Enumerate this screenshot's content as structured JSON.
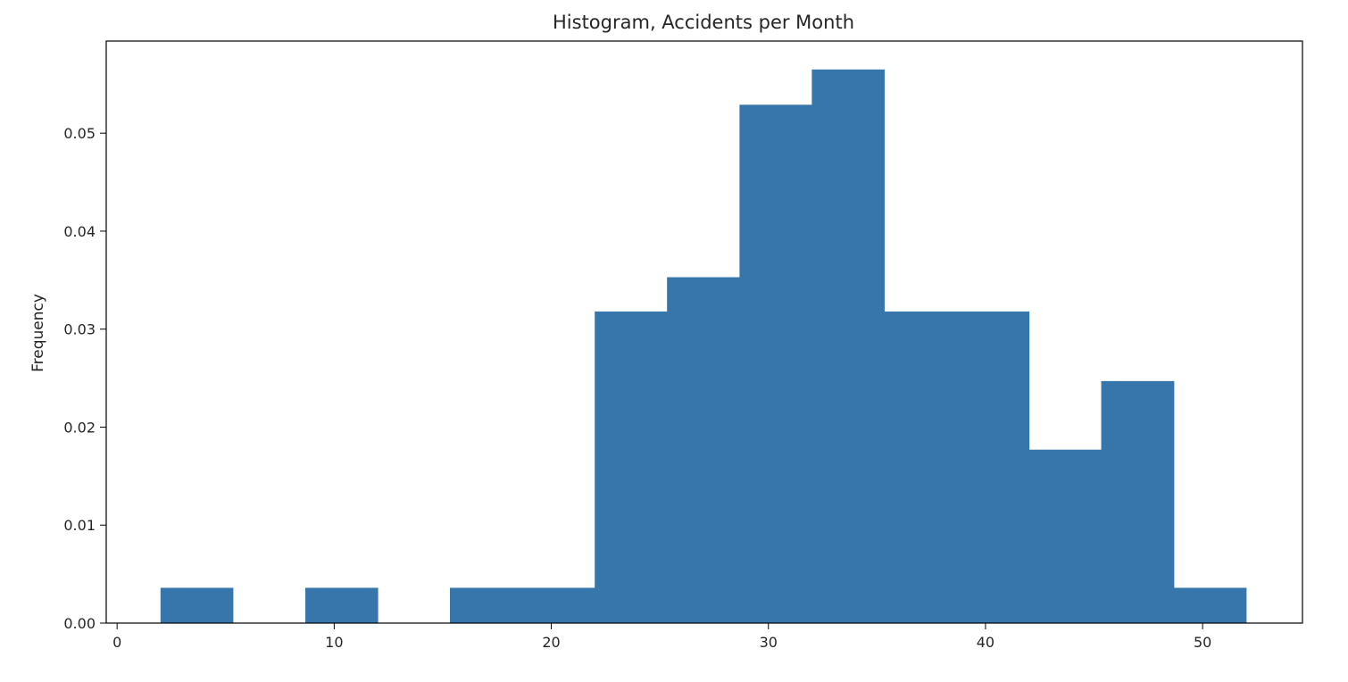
{
  "chart_data": {
    "type": "bar",
    "subtype": "histogram",
    "title": "Histogram, Accidents per Month",
    "xlabel": "",
    "ylabel": "Frequency",
    "xlim": [
      -0.5,
      54.6
    ],
    "ylim": [
      0,
      0.0594
    ],
    "xticks": [
      0,
      10,
      20,
      30,
      40,
      50
    ],
    "xtick_labels": [
      "0",
      "10",
      "20",
      "30",
      "40",
      "50"
    ],
    "yticks": [
      0.0,
      0.01,
      0.02,
      0.03,
      0.04,
      0.05
    ],
    "ytick_labels": [
      "0.00",
      "0.01",
      "0.02",
      "0.03",
      "0.04",
      "0.05"
    ],
    "grid": false,
    "legend": "none",
    "bar_color": "#3776ab",
    "bins": [
      {
        "x0": 2.0,
        "x1": 5.33,
        "value": 0.0036
      },
      {
        "x0": 5.33,
        "x1": 8.67,
        "value": 0.0
      },
      {
        "x0": 8.67,
        "x1": 12.0,
        "value": 0.0036
      },
      {
        "x0": 12.0,
        "x1": 15.33,
        "value": 0.0
      },
      {
        "x0": 15.33,
        "x1": 18.67,
        "value": 0.0036
      },
      {
        "x0": 18.67,
        "x1": 22.0,
        "value": 0.0036
      },
      {
        "x0": 22.0,
        "x1": 25.33,
        "value": 0.0318
      },
      {
        "x0": 25.33,
        "x1": 28.67,
        "value": 0.0353
      },
      {
        "x0": 28.67,
        "x1": 32.0,
        "value": 0.0529
      },
      {
        "x0": 32.0,
        "x1": 35.33,
        "value": 0.0565
      },
      {
        "x0": 35.33,
        "x1": 38.67,
        "value": 0.0318
      },
      {
        "x0": 38.67,
        "x1": 42.0,
        "value": 0.0318
      },
      {
        "x0": 42.0,
        "x1": 45.33,
        "value": 0.0177
      },
      {
        "x0": 45.33,
        "x1": 48.67,
        "value": 0.0247
      },
      {
        "x0": 48.67,
        "x1": 52.0,
        "value": 0.0036
      }
    ]
  }
}
